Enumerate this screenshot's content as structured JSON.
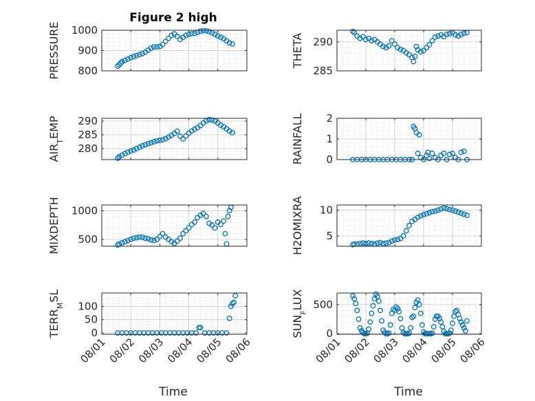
{
  "figure": {
    "title": "Figure 2 high",
    "xlabel": "Time",
    "marker_color": "#0072BD",
    "xtick_labels": [
      "08/01",
      "08/02",
      "08/03",
      "08/04",
      "08/05",
      "08/06"
    ]
  },
  "chart_data": [
    {
      "type": "scatter",
      "ylabel": {
        "main": "PRESSURE",
        "sub": ""
      },
      "xlim": [
        1,
        6
      ],
      "ylim": [
        800,
        1000
      ],
      "yticks": [
        800,
        900,
        1000
      ],
      "x": [
        1.55,
        1.6,
        1.65,
        1.7,
        1.8,
        1.9,
        2.0,
        2.1,
        2.2,
        2.3,
        2.4,
        2.5,
        2.6,
        2.7,
        2.8,
        2.9,
        3.0,
        3.1,
        3.2,
        3.3,
        3.4,
        3.5,
        3.6,
        3.7,
        3.8,
        3.9,
        4.0,
        4.1,
        4.2,
        4.3,
        4.4,
        4.5,
        4.6,
        4.7,
        4.8,
        4.9,
        5.0,
        5.1,
        5.2,
        5.3,
        5.4,
        5.5
      ],
      "y": [
        823,
        830,
        838,
        845,
        852,
        858,
        865,
        870,
        875,
        880,
        885,
        892,
        902,
        912,
        918,
        918,
        920,
        930,
        945,
        960,
        975,
        982,
        970,
        955,
        965,
        975,
        980,
        983,
        985,
        990,
        995,
        998,
        997,
        993,
        987,
        980,
        972,
        965,
        958,
        948,
        938,
        933
      ]
    },
    {
      "type": "scatter",
      "ylabel": {
        "main": "THETA",
        "sub": ""
      },
      "xlim": [
        1,
        6
      ],
      "ylim": [
        285,
        292
      ],
      "yticks": [
        285,
        290
      ],
      "x": [
        1.55,
        1.6,
        1.7,
        1.8,
        1.9,
        2.0,
        2.1,
        2.2,
        2.3,
        2.4,
        2.5,
        2.6,
        2.7,
        2.8,
        2.9,
        3.0,
        3.1,
        3.2,
        3.3,
        3.4,
        3.5,
        3.6,
        3.65,
        3.7,
        3.75,
        3.8,
        3.9,
        4.0,
        4.1,
        4.2,
        4.3,
        4.4,
        4.5,
        4.6,
        4.7,
        4.8,
        4.9,
        5.0,
        5.1,
        5.2,
        5.3,
        5.4,
        5.5
      ],
      "y": [
        291.8,
        291.6,
        291.0,
        290.6,
        290.9,
        290.4,
        290.6,
        290.2,
        290.4,
        290.0,
        289.6,
        289.2,
        289.0,
        289.3,
        290.2,
        289.6,
        289.0,
        288.7,
        288.5,
        288.1,
        287.8,
        287.3,
        286.6,
        287.5,
        289.2,
        288.6,
        288.3,
        288.5,
        289.0,
        289.5,
        290.2,
        290.8,
        291.0,
        291.2,
        290.9,
        291.3,
        291.4,
        291.6,
        291.2,
        291.0,
        291.3,
        291.5,
        291.6
      ]
    },
    {
      "type": "scatter",
      "ylabel": {
        "main": "AIR",
        "sub": "T",
        "rest": "EMP"
      },
      "xlim": [
        1,
        6
      ],
      "ylim": [
        276,
        291
      ],
      "yticks": [
        280,
        285,
        290
      ],
      "x": [
        1.55,
        1.6,
        1.7,
        1.8,
        1.9,
        2.0,
        2.1,
        2.2,
        2.3,
        2.4,
        2.5,
        2.6,
        2.7,
        2.8,
        2.9,
        3.0,
        3.1,
        3.2,
        3.3,
        3.4,
        3.5,
        3.6,
        3.7,
        3.8,
        3.9,
        4.0,
        4.1,
        4.2,
        4.3,
        4.4,
        4.5,
        4.6,
        4.7,
        4.8,
        4.9,
        5.0,
        5.1,
        5.2,
        5.3,
        5.4,
        5.5
      ],
      "y": [
        276.5,
        277.0,
        277.6,
        278.2,
        278.7,
        279.1,
        279.5,
        280.0,
        280.5,
        281.0,
        281.4,
        281.8,
        282.1,
        282.5,
        282.8,
        283.0,
        283.2,
        283.6,
        284.2,
        284.8,
        285.5,
        286.3,
        284.5,
        283.5,
        284.6,
        285.6,
        286.4,
        287.0,
        287.6,
        288.4,
        289.3,
        290.1,
        290.5,
        290.4,
        290.0,
        289.3,
        288.5,
        287.9,
        287.2,
        286.4,
        285.8
      ]
    },
    {
      "type": "scatter",
      "ylabel": {
        "main": "RAINFALL",
        "sub": ""
      },
      "xlim": [
        1,
        6
      ],
      "ylim": [
        0,
        2
      ],
      "yticks": [
        0,
        1,
        2
      ],
      "x": [
        1.55,
        1.7,
        1.85,
        2.0,
        2.15,
        2.3,
        2.45,
        2.6,
        2.75,
        2.9,
        3.05,
        3.2,
        3.35,
        3.5,
        3.6,
        3.65,
        3.7,
        3.75,
        3.8,
        3.85,
        3.9,
        4.0,
        4.1,
        4.15,
        4.2,
        4.3,
        4.4,
        4.5,
        4.6,
        4.7,
        4.8,
        4.9,
        5.0,
        5.1,
        5.2,
        5.3,
        5.4,
        5.5
      ],
      "y": [
        0,
        0,
        0,
        0,
        0,
        0,
        0,
        0,
        0,
        0,
        0,
        0,
        0,
        0,
        0,
        1.6,
        1.5,
        1.3,
        0.3,
        1.2,
        0.1,
        0,
        0.2,
        0.35,
        0.05,
        0.3,
        0.1,
        0,
        0.2,
        0.3,
        0,
        0.25,
        0.3,
        0.1,
        0,
        0.35,
        0.4,
        0
      ]
    },
    {
      "type": "scatter",
      "ylabel": {
        "main": "MIXDEPTH",
        "sub": ""
      },
      "xlim": [
        1,
        6
      ],
      "ylim": [
        380,
        1100
      ],
      "yticks": [
        500,
        1000
      ],
      "x": [
        1.55,
        1.6,
        1.7,
        1.8,
        1.9,
        2.0,
        2.1,
        2.2,
        2.3,
        2.4,
        2.5,
        2.6,
        2.7,
        2.8,
        2.9,
        3.0,
        3.1,
        3.2,
        3.3,
        3.4,
        3.5,
        3.6,
        3.7,
        3.8,
        3.9,
        4.0,
        4.1,
        4.2,
        4.3,
        4.4,
        4.5,
        4.6,
        4.7,
        4.8,
        4.9,
        5.0,
        5.1,
        5.2,
        5.25,
        5.3,
        5.35,
        5.4,
        5.45
      ],
      "y": [
        400,
        420,
        440,
        460,
        480,
        500,
        520,
        530,
        540,
        535,
        520,
        510,
        490,
        480,
        500,
        550,
        600,
        540,
        500,
        460,
        430,
        470,
        520,
        600,
        650,
        700,
        760,
        800,
        880,
        920,
        950,
        900,
        780,
        750,
        700,
        800,
        760,
        820,
        600,
        420,
        900,
        1000,
        1060
      ]
    },
    {
      "type": "scatter",
      "ylabel": {
        "main": "H2OMIXRA",
        "sub": ""
      },
      "xlim": [
        1,
        6
      ],
      "ylim": [
        3,
        11
      ],
      "yticks": [
        5,
        10
      ],
      "x": [
        1.55,
        1.6,
        1.7,
        1.8,
        1.9,
        2.0,
        2.1,
        2.2,
        2.3,
        2.4,
        2.5,
        2.6,
        2.7,
        2.8,
        2.9,
        3.0,
        3.1,
        3.2,
        3.3,
        3.4,
        3.5,
        3.6,
        3.7,
        3.8,
        3.9,
        4.0,
        4.1,
        4.2,
        4.3,
        4.4,
        4.5,
        4.6,
        4.7,
        4.8,
        4.9,
        5.0,
        5.1,
        5.2,
        5.3,
        5.4,
        5.5
      ],
      "y": [
        3.3,
        3.4,
        3.4,
        3.5,
        3.6,
        3.5,
        3.6,
        3.5,
        3.4,
        3.6,
        3.7,
        3.5,
        3.6,
        3.7,
        4.0,
        4.2,
        4.3,
        4.5,
        5.0,
        6.0,
        7.0,
        7.8,
        8.2,
        8.6,
        8.9,
        9.1,
        9.3,
        9.5,
        9.7,
        9.8,
        10.0,
        10.2,
        10.4,
        10.3,
        10.1,
        10.0,
        9.8,
        9.6,
        9.4,
        9.2,
        9.0
      ]
    },
    {
      "type": "scatter",
      "ylabel": {
        "main": "TERR",
        "sub": "M",
        "rest": "SL"
      },
      "xlim": [
        1,
        6
      ],
      "ylim": [
        -5,
        150
      ],
      "yticks": [
        0,
        50,
        100
      ],
      "x": [
        1.55,
        1.7,
        1.85,
        2.0,
        2.15,
        2.3,
        2.45,
        2.6,
        2.75,
        2.9,
        3.05,
        3.2,
        3.35,
        3.5,
        3.65,
        3.8,
        3.95,
        4.1,
        4.25,
        4.35,
        4.4,
        4.55,
        4.7,
        4.85,
        5.0,
        5.15,
        5.3,
        5.4,
        5.45,
        5.5,
        5.55,
        5.6
      ],
      "y": [
        0,
        0,
        0,
        0,
        0,
        0,
        0,
        0,
        0,
        0,
        0,
        0,
        0,
        0,
        0,
        0,
        0,
        0,
        0,
        20,
        20,
        0,
        0,
        0,
        0,
        0,
        0,
        55,
        100,
        110,
        115,
        140
      ]
    },
    {
      "type": "scatter",
      "ylabel": {
        "main": "SUN",
        "sub": "F",
        "rest": "LUX"
      },
      "xlim": [
        1,
        6
      ],
      "ylim": [
        -10,
        700
      ],
      "yticks": [
        0,
        500
      ],
      "x": [
        1.55,
        1.6,
        1.65,
        1.7,
        1.75,
        1.8,
        1.85,
        1.9,
        1.95,
        2.0,
        2.05,
        2.1,
        2.15,
        2.2,
        2.25,
        2.3,
        2.35,
        2.4,
        2.45,
        2.5,
        2.55,
        2.6,
        2.65,
        2.7,
        2.75,
        2.8,
        2.85,
        2.9,
        2.95,
        3.0,
        3.05,
        3.1,
        3.15,
        3.2,
        3.25,
        3.3,
        3.35,
        3.4,
        3.45,
        3.5,
        3.55,
        3.6,
        3.65,
        3.7,
        3.75,
        3.8,
        3.85,
        3.9,
        3.95,
        4.0,
        4.05,
        4.1,
        4.15,
        4.2,
        4.25,
        4.3,
        4.35,
        4.4,
        4.45,
        4.5,
        4.55,
        4.6,
        4.65,
        4.7,
        4.75,
        4.8,
        4.85,
        4.9,
        4.95,
        5.0,
        5.05,
        5.1,
        5.15,
        5.2,
        5.25,
        5.3,
        5.35,
        5.4,
        5.45,
        5.5
      ],
      "y": [
        650,
        600,
        520,
        400,
        250,
        100,
        50,
        20,
        0,
        0,
        10,
        80,
        200,
        350,
        480,
        600,
        680,
        640,
        560,
        400,
        220,
        60,
        20,
        0,
        0,
        10,
        150,
        350,
        420,
        400,
        460,
        430,
        380,
        260,
        100,
        20,
        0,
        0,
        0,
        10,
        100,
        280,
        300,
        450,
        540,
        580,
        500,
        350,
        150,
        30,
        0,
        0,
        0,
        0,
        0,
        10,
        120,
        250,
        300,
        300,
        260,
        200,
        120,
        40,
        0,
        0,
        0,
        10,
        60,
        180,
        300,
        380,
        400,
        330,
        260,
        200,
        150,
        100,
        50,
        220
      ]
    }
  ]
}
